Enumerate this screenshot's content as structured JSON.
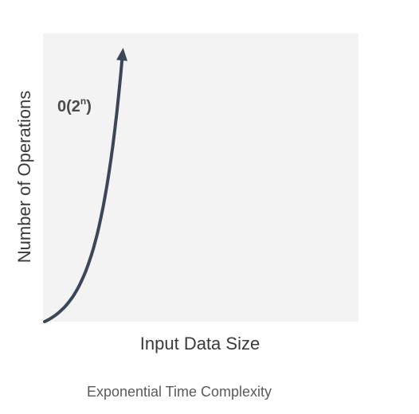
{
  "chart_data": {
    "type": "line",
    "title": "",
    "xlabel": "Input Data Size",
    "ylabel": "Number of Operations",
    "series": [
      {
        "name": "O(2^n)",
        "label_base": "0(2",
        "label_sup": "n",
        "label_close": ")",
        "color": "#3b4657",
        "growth": "exponential"
      }
    ],
    "grid": false,
    "legend": "none"
  },
  "caption": "Exponential Time Complexity"
}
